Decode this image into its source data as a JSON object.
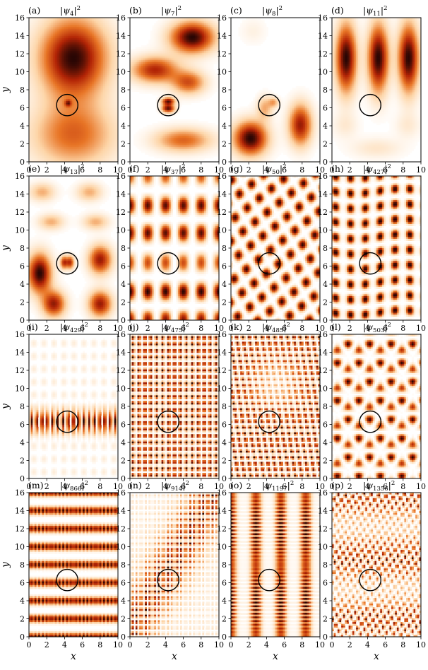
{
  "figure": {
    "x_axis_label": "x",
    "y_axis_label": "y",
    "x_ticks": [
      "0",
      "2",
      "4",
      "6",
      "8",
      "10"
    ],
    "y_ticks": [
      "0",
      "2",
      "4",
      "6",
      "8",
      "10",
      "12",
      "14",
      "16"
    ],
    "xlim": [
      0,
      10
    ],
    "ylim": [
      0,
      16
    ],
    "circle": {
      "center_x": 4.3,
      "center_y": 6.3,
      "radius": 1.2
    },
    "colormap": "white-orange-dark-red",
    "panels": [
      {
        "letter": "(a)",
        "psi": "ψ",
        "sub": "4",
        "sup": "2",
        "mode": 4
      },
      {
        "letter": "(b)",
        "psi": "ψ",
        "sub": "7",
        "sup": "2",
        "mode": 7
      },
      {
        "letter": "(c)",
        "psi": "ψ",
        "sub": "8",
        "sup": "2",
        "mode": 8
      },
      {
        "letter": "(d)",
        "psi": "ψ",
        "sub": "11",
        "sup": "2",
        "mode": 11
      },
      {
        "letter": "(e)",
        "psi": "ψ",
        "sub": "13",
        "sup": "2",
        "mode": 13
      },
      {
        "letter": "(f)",
        "psi": "ψ",
        "sub": "37",
        "sup": "2",
        "mode": 37
      },
      {
        "letter": "(g)",
        "psi": "ψ",
        "sub": "50",
        "sup": "2",
        "mode": 50
      },
      {
        "letter": "(h)",
        "psi": "ψ",
        "sub": "427",
        "sup": "2",
        "mode": 427
      },
      {
        "letter": "(i)",
        "psi": "ψ",
        "sub": "429",
        "sup": "2",
        "mode": 429
      },
      {
        "letter": "(j)",
        "psi": "ψ",
        "sub": "475",
        "sup": "2",
        "mode": 475
      },
      {
        "letter": "(k)",
        "psi": "ψ",
        "sub": "485",
        "sup": "2",
        "mode": 485
      },
      {
        "letter": "(l)",
        "psi": "ψ",
        "sub": "503",
        "sup": "2",
        "mode": 503
      },
      {
        "letter": "(m)",
        "psi": "ψ",
        "sub": "866",
        "sup": "2",
        "mode": 866
      },
      {
        "letter": "(n)",
        "psi": "ψ",
        "sub": "914",
        "sup": "2",
        "mode": 914
      },
      {
        "letter": "(o)",
        "psi": "ψ",
        "sub": "1197",
        "sup": "2",
        "mode": 1197
      },
      {
        "letter": "(p)",
        "psi": "ψ",
        "sub": "1356",
        "sup": "2",
        "mode": 1356
      }
    ]
  }
}
